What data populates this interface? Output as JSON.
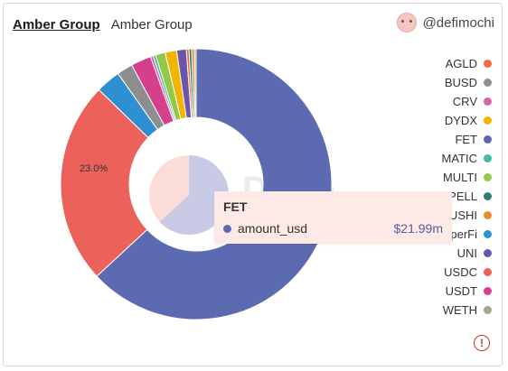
{
  "header": {
    "title": "Amber Group",
    "subtitle": "Amber Group",
    "author": "@defimochi"
  },
  "watermark": "Dune",
  "tooltip": {
    "title": "FET",
    "metric": "amount_usd",
    "value": "$21.99m",
    "color": "#5c6bb1"
  },
  "chart_data": {
    "type": "pie",
    "donut": true,
    "labels": [
      "AGLD",
      "BUSD",
      "CRV",
      "DYDX",
      "FET",
      "MATIC",
      "MULTI",
      "SPELL",
      "SUSHI",
      "SuperFi",
      "UNI",
      "USDC",
      "USDT",
      "WETH"
    ],
    "legend_labels": [
      "AGLD",
      "BUSD",
      "CRV",
      "DYDX",
      "FET",
      "MATIC",
      "MULTI",
      "SPELL",
      "SUSHI",
      "SuperFi",
      "UNI",
      "USDC",
      "USDT",
      "WETH"
    ],
    "colors": [
      "#ee6a43",
      "#8e8e8e",
      "#d864a8",
      "#f1b400",
      "#5c6bb1",
      "#3fb8a4",
      "#91c849",
      "#2e7d70",
      "#e88a2b",
      "#2f90d1",
      "#6c54a8",
      "#ec6159",
      "#d4408c",
      "#a8a48e"
    ],
    "percentages": [
      0.3,
      1.8,
      0.3,
      1.3,
      60.0,
      0.3,
      1.1,
      0.3,
      0.3,
      2.8,
      1.1,
      23.0,
      2.3,
      0.2
    ],
    "data_labels": [
      {
        "label": "USDC",
        "text": "23.0%"
      }
    ],
    "highlighted": "FET",
    "legend_position": "right"
  },
  "icons": {
    "warning": "alert-circle-icon",
    "avatar": "avatar-icon"
  }
}
